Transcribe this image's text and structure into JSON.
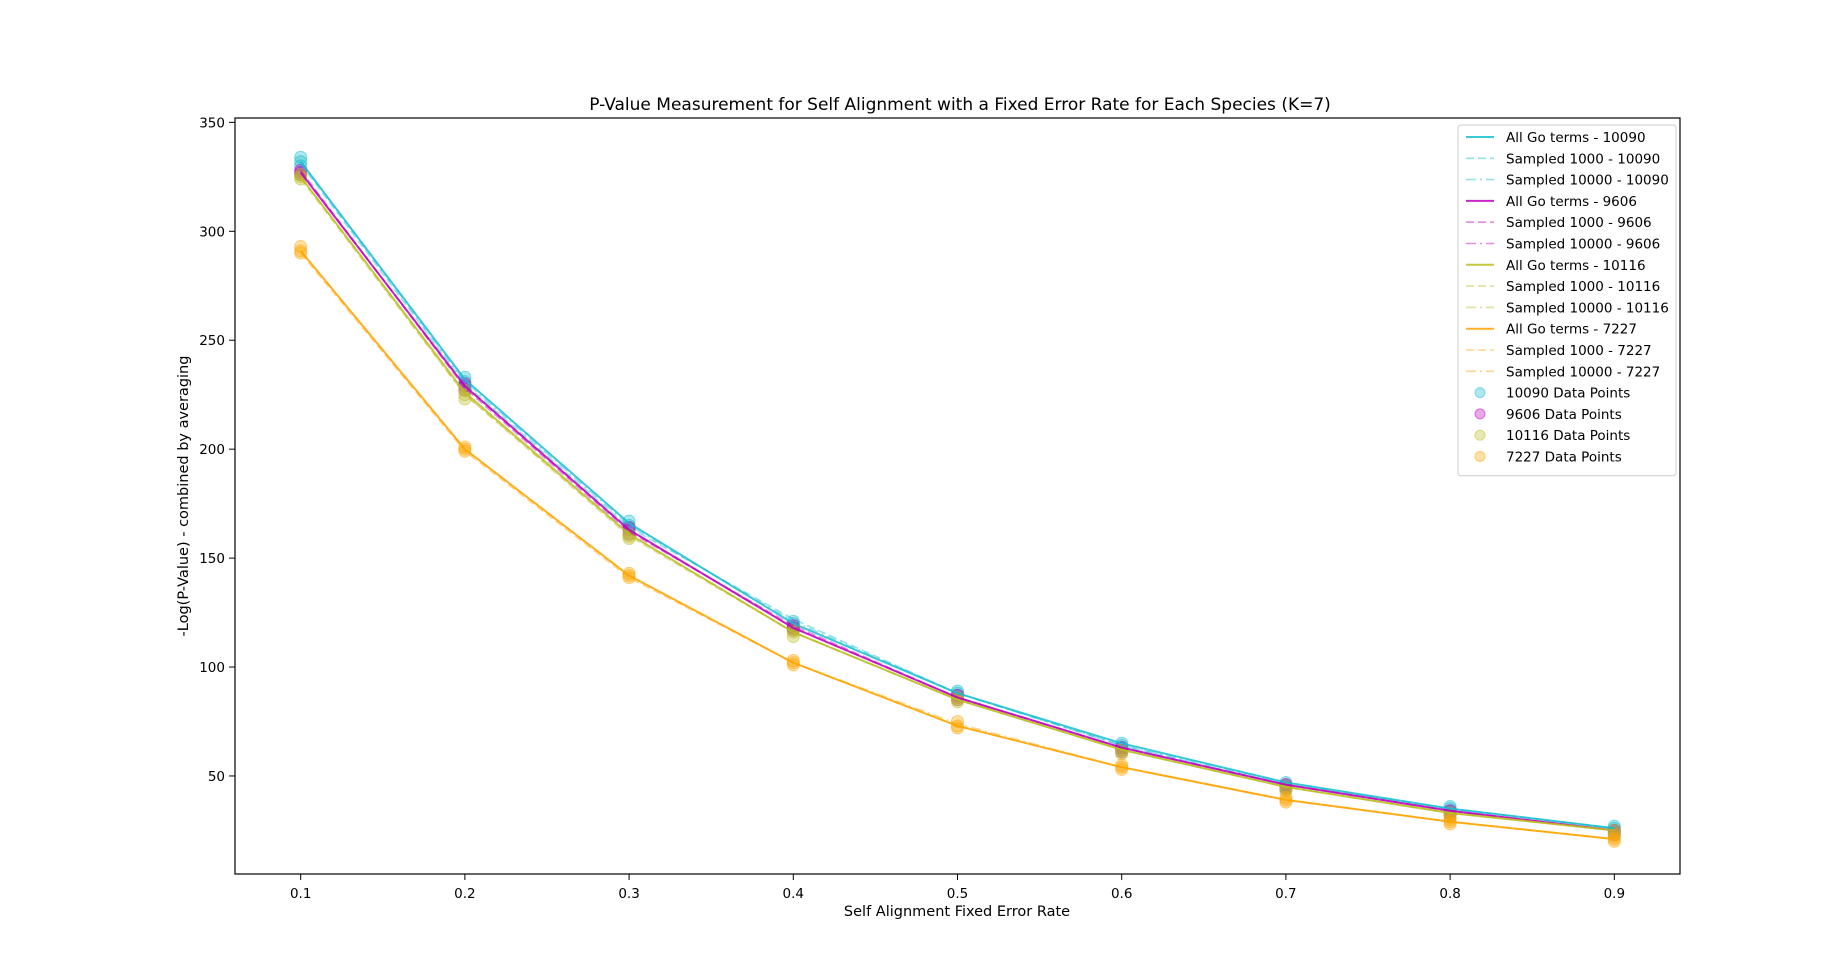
{
  "chart_data": {
    "type": "line",
    "title": "P-Value Measurement for Self Alignment with a Fixed Error Rate for Each Species (K=7)",
    "xlabel": "Self Alignment Fixed Error Rate",
    "ylabel": "-Log(P-Value) - combined by averaging",
    "x": [
      0.1,
      0.2,
      0.3,
      0.4,
      0.5,
      0.6,
      0.7,
      0.8,
      0.9
    ],
    "x_ticks": [
      "0.1",
      "0.2",
      "0.3",
      "0.4",
      "0.5",
      "0.6",
      "0.7",
      "0.8",
      "0.9"
    ],
    "y_ticks": [
      "50",
      "100",
      "150",
      "200",
      "250",
      "300",
      "350"
    ],
    "xlim": [
      0.06,
      0.94
    ],
    "ylim": [
      5,
      352
    ],
    "grid": false,
    "legend_position": "top-right",
    "colors": {
      "10090": "#17becf",
      "9606": "#bf00bf",
      "10116": "#bcbd22",
      "7227": "#ffa500"
    },
    "series": [
      {
        "name": "All Go terms - 10090",
        "species": "10090",
        "style": "solid",
        "values": [
          332,
          232,
          166,
          120,
          88,
          65,
          47,
          35,
          26
        ]
      },
      {
        "name": "Sampled 1000 - 10090",
        "species": "10090",
        "style": "dashed",
        "values": [
          331,
          230,
          164,
          122,
          88,
          64,
          46,
          35,
          26
        ]
      },
      {
        "name": "Sampled 10000 - 10090",
        "species": "10090",
        "style": "dashdot",
        "values": [
          332,
          231,
          165,
          121,
          88,
          64,
          47,
          35,
          26
        ]
      },
      {
        "name": "All Go terms - 9606",
        "species": "9606",
        "style": "solid",
        "values": [
          327,
          229,
          163,
          118,
          86,
          63,
          46,
          34,
          25
        ]
      },
      {
        "name": "Sampled 1000 - 9606",
        "species": "9606",
        "style": "dashed",
        "values": [
          328,
          228,
          162,
          119,
          86,
          63,
          46,
          34,
          25
        ]
      },
      {
        "name": "Sampled 10000 - 9606",
        "species": "9606",
        "style": "dashdot",
        "values": [
          327,
          229,
          163,
          118,
          86,
          63,
          46,
          34,
          25
        ]
      },
      {
        "name": "All Go terms - 10116",
        "species": "10116",
        "style": "solid",
        "values": [
          325,
          226,
          161,
          116,
          85,
          62,
          45,
          33,
          25
        ]
      },
      {
        "name": "Sampled 1000 - 10116",
        "species": "10116",
        "style": "dashed",
        "values": [
          324,
          225,
          160,
          116,
          85,
          62,
          45,
          33,
          25
        ]
      },
      {
        "name": "Sampled 10000 - 10116",
        "species": "10116",
        "style": "dashdot",
        "values": [
          325,
          225,
          161,
          116,
          85,
          62,
          45,
          33,
          25
        ]
      },
      {
        "name": "All Go terms - 7227",
        "species": "7227",
        "style": "solid",
        "values": [
          291,
          200,
          142,
          102,
          73,
          54,
          39,
          29,
          21
        ]
      },
      {
        "name": "Sampled 1000 - 7227",
        "species": "7227",
        "style": "dashed",
        "values": [
          290,
          199,
          141,
          102,
          73,
          54,
          39,
          29,
          21
        ]
      },
      {
        "name": "Sampled 10000 - 7227",
        "species": "7227",
        "style": "dashdot",
        "values": [
          291,
          200,
          142,
          102,
          74,
          54,
          39,
          29,
          21
        ]
      }
    ],
    "points": [
      {
        "name": "10090 Data Points",
        "species": "10090",
        "values": [
          [
            334,
            332,
            330
          ],
          [
            233,
            231,
            229
          ],
          [
            167,
            165,
            164
          ],
          [
            121,
            120,
            118
          ],
          [
            89,
            88,
            87
          ],
          [
            65,
            64,
            63
          ],
          [
            47,
            46,
            45
          ],
          [
            36,
            35,
            34
          ],
          [
            27,
            26,
            25
          ]
        ]
      },
      {
        "name": "9606 Data Points",
        "species": "9606",
        "values": [
          [
            328,
            327,
            326
          ],
          [
            230,
            229,
            227
          ],
          [
            164,
            163,
            161
          ],
          [
            119,
            118,
            117
          ],
          [
            87,
            86,
            85
          ],
          [
            63,
            62,
            61
          ],
          [
            46,
            45,
            44
          ],
          [
            34,
            33,
            32
          ],
          [
            25,
            24,
            23
          ]
        ]
      },
      {
        "name": "10116 Data Points",
        "species": "10116",
        "values": [
          [
            326,
            325,
            324
          ],
          [
            227,
            225,
            223
          ],
          [
            161,
            160,
            159
          ],
          [
            117,
            116,
            114
          ],
          [
            86,
            85,
            84
          ],
          [
            62,
            61,
            60
          ],
          [
            45,
            44,
            43
          ],
          [
            33,
            32,
            31
          ],
          [
            25,
            24,
            23
          ]
        ]
      },
      {
        "name": "7227 Data Points",
        "species": "7227",
        "values": [
          [
            293,
            291,
            290
          ],
          [
            201,
            200,
            199
          ],
          [
            143,
            142,
            141
          ],
          [
            103,
            102,
            101
          ],
          [
            75,
            73,
            72
          ],
          [
            55,
            54,
            53
          ],
          [
            40,
            39,
            38
          ],
          [
            30,
            29,
            28
          ],
          [
            22,
            21,
            20
          ]
        ]
      }
    ]
  }
}
